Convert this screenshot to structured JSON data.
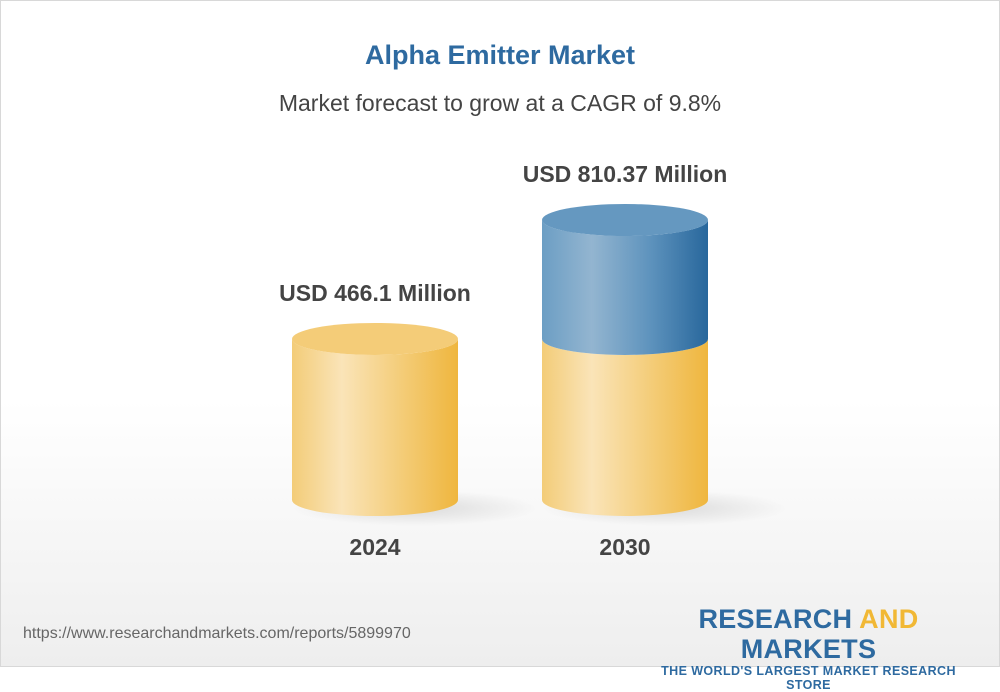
{
  "chart_data": {
    "type": "bar",
    "title": "Alpha Emitter Market",
    "subtitle": "Market forecast to grow at a CAGR of 9.8%",
    "categories": [
      "2024",
      "2030"
    ],
    "values": [
      466.1,
      810.37
    ],
    "data_labels": [
      "USD 466.1 Million",
      "USD 810.37 Million"
    ],
    "unit": "USD Million",
    "colors": {
      "base": "#f1b835",
      "growth": "#2b6a9e",
      "title": "#2e6aa0"
    },
    "grid": false
  },
  "footer": {
    "url": "https://www.researchandmarkets.com/reports/5899970",
    "logo_line1_a": "RESEARCH ",
    "logo_line1_b": "AND",
    "logo_line1_c": " MARKETS",
    "logo_line2": "THE WORLD'S LARGEST MARKET RESEARCH STORE"
  }
}
